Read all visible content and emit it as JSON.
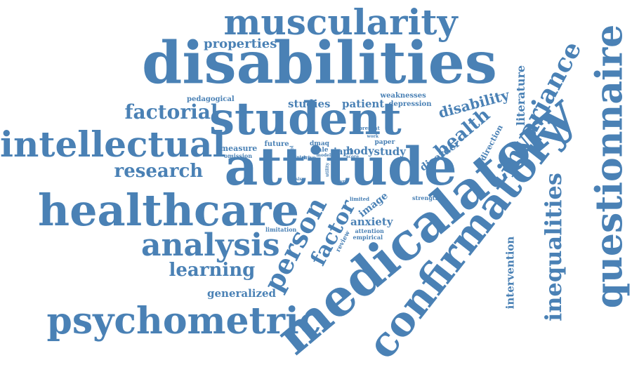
{
  "palette": {
    "word_color": "#4a81b5",
    "background": "#ffffff"
  },
  "words": [
    {
      "id": "disabilities",
      "text": "disabilities"
    },
    {
      "id": "attitude",
      "text": "attitude"
    },
    {
      "id": "medicalatory",
      "text": "medicalatory"
    },
    {
      "id": "student",
      "text": "student"
    },
    {
      "id": "healthcare",
      "text": "healthcare"
    },
    {
      "id": "confirmatory",
      "text": "confirmatory"
    },
    {
      "id": "questionnaire",
      "text": "questionnaire"
    },
    {
      "id": "muscularity",
      "text": "muscularity"
    },
    {
      "id": "intellectual",
      "text": "intellectual"
    },
    {
      "id": "psychometric",
      "text": "psychometric"
    },
    {
      "id": "analysis",
      "text": "analysis"
    },
    {
      "id": "invariance",
      "text": "invariance"
    },
    {
      "id": "person",
      "text": "person"
    },
    {
      "id": "inequalities",
      "text": "inequalities"
    },
    {
      "id": "factor",
      "text": "factor"
    },
    {
      "id": "factorial",
      "text": "factorial"
    },
    {
      "id": "research",
      "text": "research"
    },
    {
      "id": "learning",
      "text": "learning"
    },
    {
      "id": "health",
      "text": "health"
    },
    {
      "id": "disability",
      "text": "disability"
    },
    {
      "id": "literature",
      "text": "literature"
    },
    {
      "id": "intervention",
      "text": "intervention"
    },
    {
      "id": "properties",
      "text": "properties"
    },
    {
      "id": "generalized",
      "text": "generalized"
    },
    {
      "id": "studies",
      "text": "studies"
    },
    {
      "id": "patient",
      "text": "patient"
    },
    {
      "id": "anxiety",
      "text": "anxiety"
    },
    {
      "id": "image",
      "text": "image"
    },
    {
      "id": "body",
      "text": "body"
    },
    {
      "id": "study",
      "text": "study"
    },
    {
      "id": "disorder",
      "text": "disorder"
    },
    {
      "id": "direction",
      "text": "direction"
    },
    {
      "id": "measure",
      "text": "measure"
    },
    {
      "id": "iapt",
      "text": "iapt"
    },
    {
      "id": "pedagogical",
      "text": "pedagogical"
    },
    {
      "id": "weaknesses",
      "text": "weaknesses"
    },
    {
      "id": "depression",
      "text": "depression"
    },
    {
      "id": "dmaq",
      "text": "dmaq"
    },
    {
      "id": "paper",
      "text": "paper"
    },
    {
      "id": "future",
      "text": "future"
    },
    {
      "id": "scale",
      "text": "scale"
    },
    {
      "id": "omission",
      "text": "omission"
    },
    {
      "id": "review",
      "text": "review"
    },
    {
      "id": "limitation",
      "text": "limitation"
    },
    {
      "id": "attention",
      "text": "attention"
    },
    {
      "id": "empirical",
      "text": "empirical"
    },
    {
      "id": "strength",
      "text": "strength"
    },
    {
      "id": "irish",
      "text": "irish"
    },
    {
      "id": "data",
      "text": "data"
    },
    {
      "id": "part",
      "text": "part"
    },
    {
      "id": "present",
      "text": "present"
    },
    {
      "id": "limited",
      "text": "limited"
    },
    {
      "id": "drive",
      "text": "drive"
    },
    {
      "id": "thesis",
      "text": "thesis"
    },
    {
      "id": "utility",
      "text": "utility"
    },
    {
      "id": "inter",
      "text": "inter"
    },
    {
      "id": "work",
      "text": "work"
    },
    {
      "id": "tool",
      "text": "tool"
    },
    {
      "id": "model",
      "text": "model"
    },
    {
      "id": "score",
      "text": "score"
    }
  ]
}
